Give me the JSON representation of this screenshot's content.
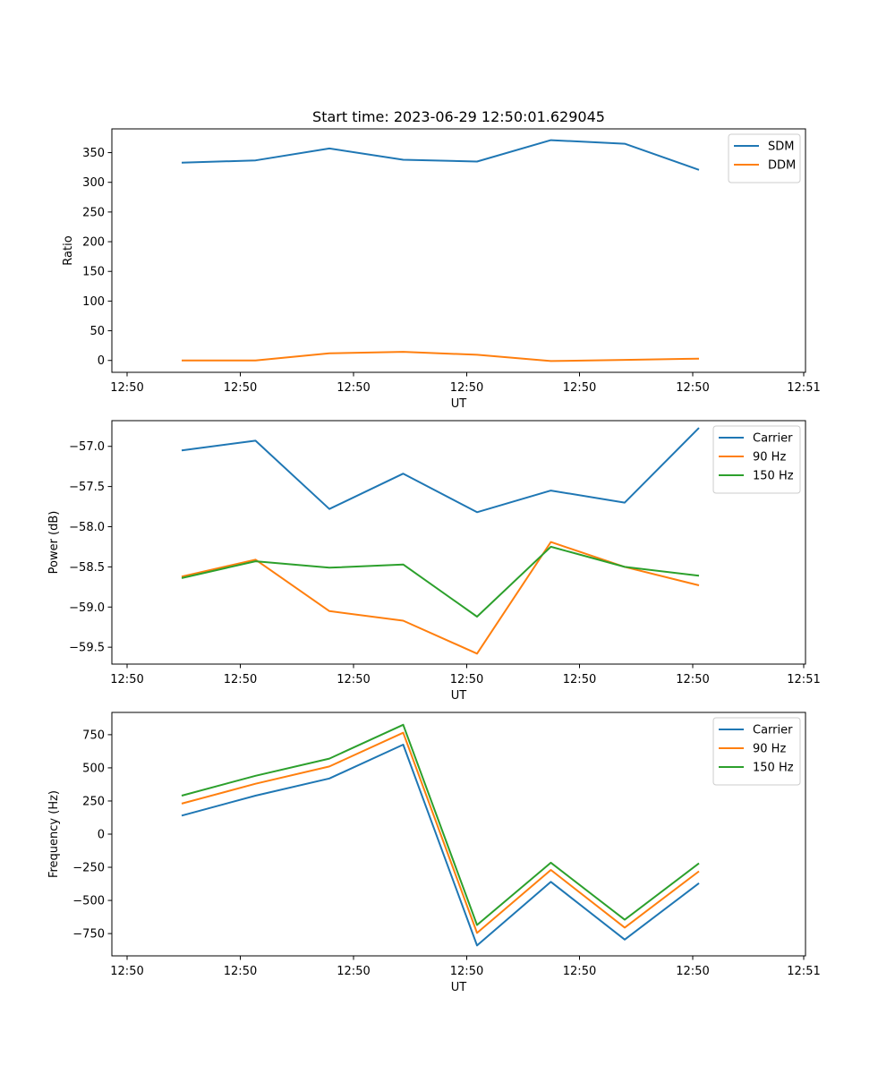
{
  "figure": {
    "title": "Start time: 2023-06-29 12:50:01.629045"
  },
  "colors": {
    "blue": "#1f77b4",
    "orange": "#ff7f0e",
    "green": "#2ca02c"
  },
  "chart_data": [
    {
      "type": "line",
      "title": "Start time: 2023-06-29 12:50:01.629045",
      "xlabel": "UT",
      "ylabel": "Ratio",
      "x_tick_labels": [
        "12:50",
        "12:50",
        "12:50",
        "12:50",
        "12:50",
        "12:50",
        "12:51"
      ],
      "y_ticks": [
        0,
        50,
        100,
        150,
        200,
        250,
        300,
        350
      ],
      "ylim": [
        -20,
        390
      ],
      "legend": "top-right",
      "grid": false,
      "series": [
        {
          "name": "SDM",
          "color": "#1f77b4",
          "values": [
            333,
            337,
            357,
            338,
            335,
            371,
            365,
            321
          ]
        },
        {
          "name": "DDM",
          "color": "#ff7f0e",
          "values": [
            0,
            0,
            12,
            14.5,
            9.5,
            -1,
            1,
            3
          ]
        }
      ]
    },
    {
      "type": "line",
      "title": "",
      "xlabel": "UT",
      "ylabel": "Power (dB)",
      "x_tick_labels": [
        "12:50",
        "12:50",
        "12:50",
        "12:50",
        "12:50",
        "12:50",
        "12:51"
      ],
      "y_ticks": [
        -59.5,
        -59.0,
        -58.5,
        -58.0,
        -57.5,
        -57.0
      ],
      "y_tick_labels": [
        "−59.5",
        "−59.0",
        "−58.5",
        "−58.0",
        "−57.5",
        "−57.0"
      ],
      "ylim": [
        -59.71,
        -56.68
      ],
      "legend": "top-right",
      "grid": false,
      "series": [
        {
          "name": "Carrier",
          "color": "#1f77b4",
          "values": [
            -57.05,
            -56.93,
            -57.78,
            -57.34,
            -57.82,
            -57.55,
            -57.7,
            -56.77
          ]
        },
        {
          "name": "90 Hz",
          "color": "#ff7f0e",
          "values": [
            -58.62,
            -58.41,
            -59.05,
            -59.17,
            -59.58,
            -58.19,
            -58.5,
            -58.73
          ]
        },
        {
          "name": "150 Hz",
          "color": "#2ca02c",
          "values": [
            -58.64,
            -58.43,
            -58.51,
            -58.47,
            -59.12,
            -58.25,
            -58.5,
            -58.61
          ]
        }
      ]
    },
    {
      "type": "line",
      "title": "",
      "xlabel": "UT",
      "ylabel": "Frequency (Hz)",
      "x_tick_labels": [
        "12:50",
        "12:50",
        "12:50",
        "12:50",
        "12:50",
        "12:50",
        "12:51"
      ],
      "y_ticks": [
        -750,
        -500,
        -250,
        0,
        250,
        500,
        750
      ],
      "y_tick_labels": [
        "−750",
        "−500",
        "−250",
        "0",
        "250",
        "500",
        "750"
      ],
      "ylim": [
        -918,
        918
      ],
      "legend": "top-right",
      "grid": false,
      "series": [
        {
          "name": "Carrier",
          "color": "#1f77b4",
          "values": [
            140,
            290,
            420,
            675,
            -840,
            -360,
            -795,
            -370
          ]
        },
        {
          "name": "90 Hz",
          "color": "#ff7f0e",
          "values": [
            230,
            380,
            510,
            765,
            -745,
            -270,
            -705,
            -280
          ]
        },
        {
          "name": "150 Hz",
          "color": "#2ca02c",
          "values": [
            290,
            440,
            570,
            825,
            -685,
            -215,
            -645,
            -220
          ]
        }
      ]
    }
  ]
}
